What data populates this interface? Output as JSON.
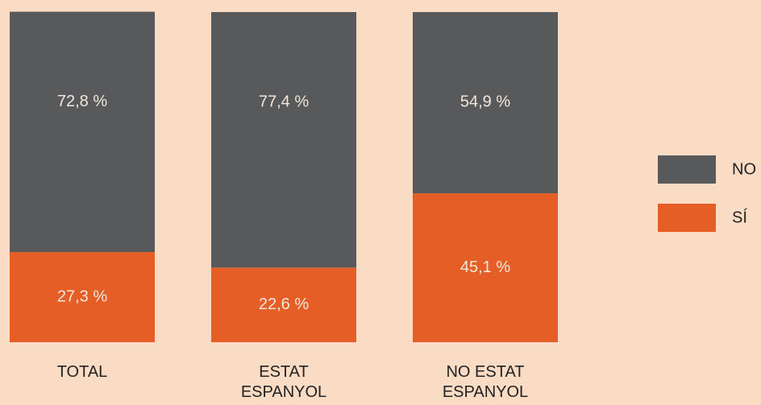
{
  "chart_data": {
    "type": "bar",
    "stacked": true,
    "categories": [
      "TOTAL",
      "ESTAT ESPANYOL",
      "NO ESTAT ESPANYOL"
    ],
    "series": [
      {
        "name": "SÍ",
        "color": "#e55e26",
        "values": [
          27.3,
          22.6,
          45.1
        ],
        "value_labels": [
          "27,3 %",
          "22,6 %",
          "45,1 %"
        ]
      },
      {
        "name": "NO",
        "color": "#58595b",
        "values": [
          72.8,
          77.4,
          54.9
        ],
        "value_labels": [
          "72,8 %",
          "77,4 %",
          "54,9 %"
        ]
      }
    ],
    "ylim": [
      0,
      100
    ],
    "legend": "right"
  }
}
